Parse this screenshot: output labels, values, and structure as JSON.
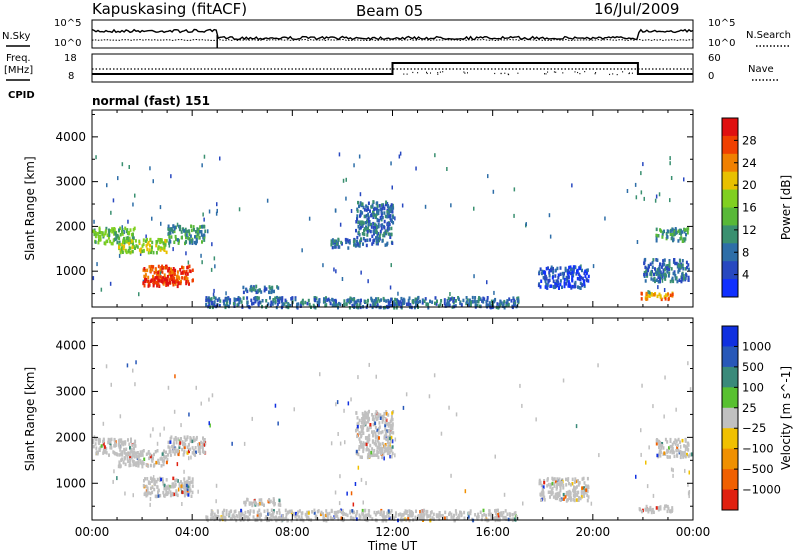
{
  "header": {
    "station": "Kapuskasing (fitACF)",
    "beam": "Beam 05",
    "date": "16/Jul/2009"
  },
  "status_panel": {
    "left_label": "N.Sky",
    "right_label": "N.Search",
    "left_ticks": [
      "10^5",
      "10^0"
    ],
    "right_ticks": [
      "10^5",
      "10^0"
    ],
    "freq_label_1": "Freq.",
    "freq_label_2": "[MHz]",
    "freq_ticks": [
      "18",
      "8"
    ],
    "nave_label": "Nave",
    "nave_ticks": [
      "60",
      "0"
    ],
    "cpid_label": "CPID",
    "mode_label": "normal (fast) 151"
  },
  "chart_data": [
    {
      "type": "heatmap",
      "title": "",
      "quantity": "Power",
      "xlabel": "",
      "ylabel": "Slant Range [km]",
      "x_range_hours": [
        0,
        24
      ],
      "ylim": [
        200,
        4600
      ],
      "yticks": [
        1000,
        2000,
        3000,
        4000
      ],
      "colorbar": {
        "label": "Power [dB]",
        "ticks": [
          "4",
          "8",
          "12",
          "16",
          "20",
          "24",
          "28"
        ],
        "colors": [
          "#1030ff",
          "#2848c0",
          "#2e6ea8",
          "#3a9070",
          "#58b838",
          "#80d020",
          "#e8c000",
          "#f08000",
          "#f04000",
          "#e01010"
        ]
      },
      "echo_regions": [
        {
          "t0": 0.0,
          "t1": 1.7,
          "r0": 1650,
          "r1": 2000,
          "level": 4
        },
        {
          "t0": 1.0,
          "t1": 3.0,
          "r0": 1450,
          "r1": 1750,
          "level": 5
        },
        {
          "t0": 2.0,
          "t1": 4.0,
          "r0": 750,
          "r1": 1150,
          "level": 8
        },
        {
          "t0": 2.0,
          "t1": 3.5,
          "r0": 700,
          "r1": 900,
          "level": 9
        },
        {
          "t0": 3.0,
          "t1": 4.5,
          "r0": 1650,
          "r1": 2050,
          "level": 3
        },
        {
          "t0": 6.0,
          "t1": 7.5,
          "r0": 550,
          "r1": 700,
          "level": 2
        },
        {
          "t0": 4.5,
          "t1": 17.0,
          "r0": 220,
          "r1": 450,
          "level": 2
        },
        {
          "t0": 9.5,
          "t1": 10.5,
          "r0": 1550,
          "r1": 1750,
          "level": 2
        },
        {
          "t0": 10.5,
          "t1": 12.0,
          "r0": 1600,
          "r1": 2600,
          "level": 2
        },
        {
          "t0": 17.8,
          "t1": 19.8,
          "r0": 650,
          "r1": 1150,
          "level": 1
        },
        {
          "t0": 21.8,
          "t1": 23.2,
          "r0": 400,
          "r1": 550,
          "level": 7
        },
        {
          "t0": 22.0,
          "t1": 23.8,
          "r0": 800,
          "r1": 1300,
          "level": 2
        },
        {
          "t0": 22.5,
          "t1": 23.8,
          "r0": 1700,
          "r1": 2000,
          "level": 3
        }
      ]
    },
    {
      "type": "heatmap",
      "title": "",
      "quantity": "Velocity",
      "xlabel": "Time UT",
      "ylabel": "Slant Range [km]",
      "x_range_hours": [
        0,
        24
      ],
      "xticks": [
        "00:00",
        "04:00",
        "08:00",
        "12:00",
        "16:00",
        "20:00",
        "00:00"
      ],
      "ylim": [
        200,
        4600
      ],
      "yticks": [
        1000,
        2000,
        3000,
        4000
      ],
      "colorbar": {
        "label": "Velocity [m s^-1]",
        "ticks": [
          "1000",
          "500",
          "100",
          "25",
          "−25",
          "−100",
          "−500",
          "−1000"
        ],
        "colors": [
          "#1030e0",
          "#2858b8",
          "#3a8a7a",
          "#58c030",
          "#c0c0c0",
          "#f0c000",
          "#f09000",
          "#f06000",
          "#e02010"
        ]
      },
      "echo_regions": [
        {
          "t0": 0.0,
          "t1": 1.7,
          "r0": 1650,
          "r1": 2000,
          "level": 4
        },
        {
          "t0": 1.0,
          "t1": 3.0,
          "r0": 1400,
          "r1": 1750,
          "level": 4
        },
        {
          "t0": 2.0,
          "t1": 4.0,
          "r0": 750,
          "r1": 1150,
          "level": 4
        },
        {
          "t0": 3.0,
          "t1": 4.5,
          "r0": 1650,
          "r1": 2050,
          "level": 4
        },
        {
          "t0": 6.0,
          "t1": 7.5,
          "r0": 550,
          "r1": 700,
          "level": 4
        },
        {
          "t0": 4.5,
          "t1": 17.0,
          "r0": 220,
          "r1": 450,
          "level": 4
        },
        {
          "t0": 10.5,
          "t1": 12.0,
          "r0": 1600,
          "r1": 2600,
          "level": 4
        },
        {
          "t0": 17.8,
          "t1": 19.8,
          "r0": 650,
          "r1": 1150,
          "level": 4
        },
        {
          "t0": 21.8,
          "t1": 23.2,
          "r0": 400,
          "r1": 550,
          "level": 4
        },
        {
          "t0": 22.5,
          "t1": 23.8,
          "r0": 1600,
          "r1": 2000,
          "level": 4
        }
      ]
    }
  ]
}
